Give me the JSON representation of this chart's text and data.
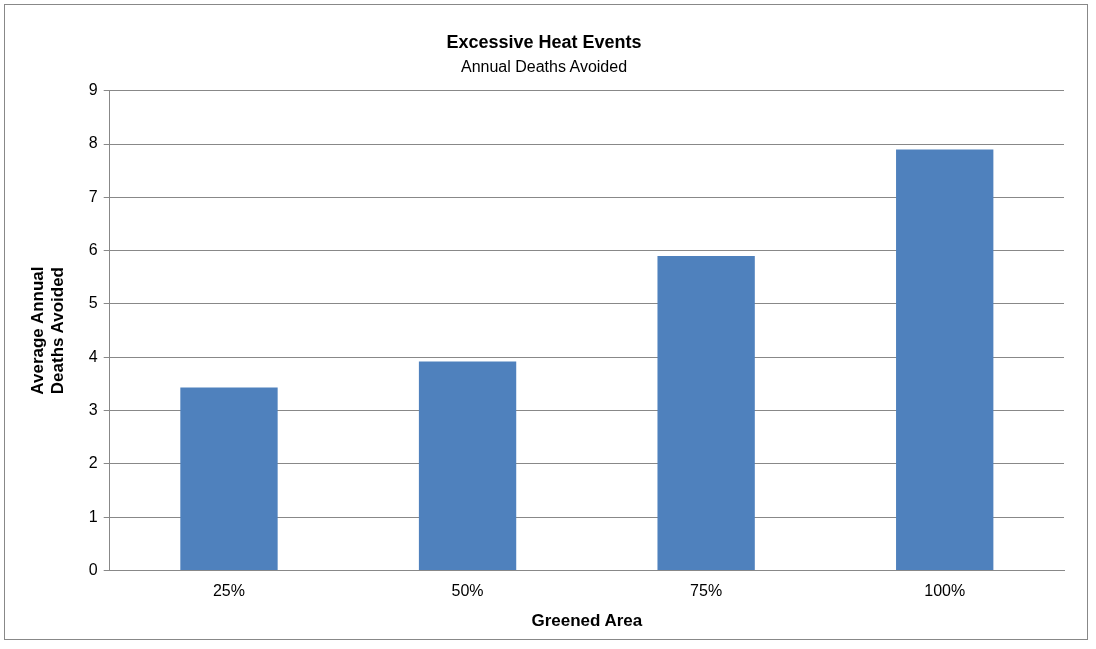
{
  "chart_data": {
    "type": "bar",
    "title": "Excessive Heat Events",
    "subtitle": "Annual Deaths Avoided",
    "xlabel": "Greened Area",
    "ylabel": "Average Annual Deaths Avoided",
    "categories": [
      "25%",
      "50%",
      "75%",
      "100%"
    ],
    "values": [
      3.43,
      3.92,
      5.9,
      7.9
    ],
    "color": "#4f81bd",
    "ylim": [
      0,
      9
    ],
    "yticks": [
      0,
      1,
      2,
      3,
      4,
      5,
      6,
      7,
      8,
      9
    ],
    "grid": "y",
    "legend": false
  }
}
